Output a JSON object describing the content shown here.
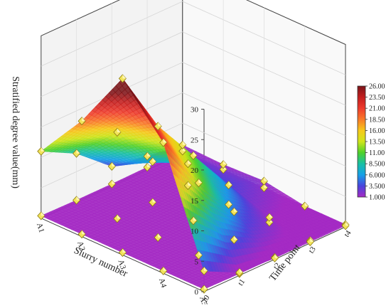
{
  "chart_data": {
    "type": "surface3d",
    "zlabel": "Stratified degree value(mm)",
    "xlabel": "Slurry number",
    "ylabel": "Time point",
    "x_categories": [
      "A1",
      "A2",
      "A3",
      "A4",
      "A5"
    ],
    "y_categories": [
      "t0",
      "t1",
      "t2",
      "t3",
      "t4"
    ],
    "z_ticks": [
      0,
      5,
      10,
      15,
      20,
      25,
      30
    ],
    "zlim": [
      0,
      30
    ],
    "grid": true,
    "colorbar": {
      "placement": "right",
      "levels": [
        "26.00",
        "23.50",
        "21.00",
        "18.50",
        "16.00",
        "13.50",
        "11.00",
        "8.500",
        "6.000",
        "3.500",
        "1.000"
      ],
      "colors": [
        "#7a1418",
        "#c41e1e",
        "#ee3a2c",
        "#f97a28",
        "#f7c91a",
        "#cfe51a",
        "#4ed12a",
        "#18c0a4",
        "#16a0e8",
        "#4a44dc",
        "#a42ac4"
      ]
    },
    "surface_values": [
      [
        3.4,
        0.5,
        0.2,
        0.2,
        0.2
      ],
      [
        21.5,
        12.2,
        4.8,
        1.2,
        0.4
      ],
      [
        29.0,
        18.5,
        11.0,
        3.5,
        1.5
      ],
      [
        19.0,
        14.5,
        7.0,
        4.0,
        1.2
      ],
      [
        11.0,
        8.0,
        3.2,
        2.2,
        1.4
      ]
    ],
    "base_values": [
      [
        0.4,
        0.3,
        0.3,
        0.4,
        0.4
      ],
      [
        0.4,
        0.3,
        0.2,
        0.4,
        0.4
      ],
      [
        0.4,
        0.2,
        0.3,
        0.3,
        0.4
      ],
      [
        0.4,
        0.3,
        0.3,
        0.4,
        0.4
      ],
      [
        0.4,
        0.3,
        0.3,
        0.4,
        0.4
      ]
    ]
  }
}
